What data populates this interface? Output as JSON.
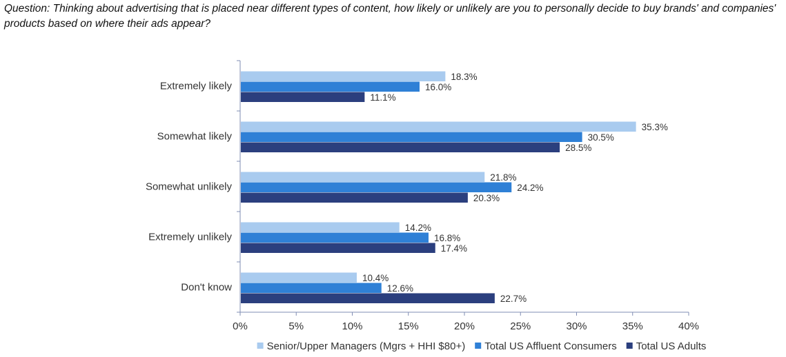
{
  "question": "Question: Thinking about advertising that is placed near different types of content, how likely or unlikely are you to personally decide to buy brands' and companies' products based on where their ads appear?",
  "colors": {
    "series_1": "#a9cbef",
    "series_2": "#2f80d6",
    "series_3": "#2b3f7e",
    "axis": "#7f8cb3"
  },
  "chart_data": {
    "type": "bar",
    "orientation": "horizontal",
    "categories": [
      "Extremely likely",
      "Somewhat likely",
      "Somewhat unlikely",
      "Extremely unlikely",
      "Don't know"
    ],
    "series": [
      {
        "name": "Senior/Upper Managers (Mgrs + HHI $80+)",
        "values": [
          18.3,
          35.3,
          21.8,
          14.2,
          10.4
        ],
        "labels": [
          "18.3%",
          "35.3%",
          "21.8%",
          "14.2%",
          "10.4%"
        ]
      },
      {
        "name": "Total US Affluent Consumers",
        "values": [
          16.0,
          30.5,
          24.2,
          16.8,
          12.6
        ],
        "labels": [
          "16.0%",
          "30.5%",
          "24.2%",
          "16.8%",
          "12.6%"
        ]
      },
      {
        "name": "Total US Adults",
        "values": [
          11.1,
          28.5,
          20.3,
          17.4,
          22.7
        ],
        "labels": [
          "11.1%",
          "28.5%",
          "20.3%",
          "17.4%",
          "22.7%"
        ]
      }
    ],
    "x_ticks": [
      0,
      5,
      10,
      15,
      20,
      25,
      30,
      35,
      40
    ],
    "x_tick_labels": [
      "0%",
      "5%",
      "10%",
      "15%",
      "20%",
      "25%",
      "30%",
      "35%",
      "40%"
    ],
    "xlim": [
      0,
      40
    ],
    "grid": false,
    "legend_position": "bottom"
  }
}
